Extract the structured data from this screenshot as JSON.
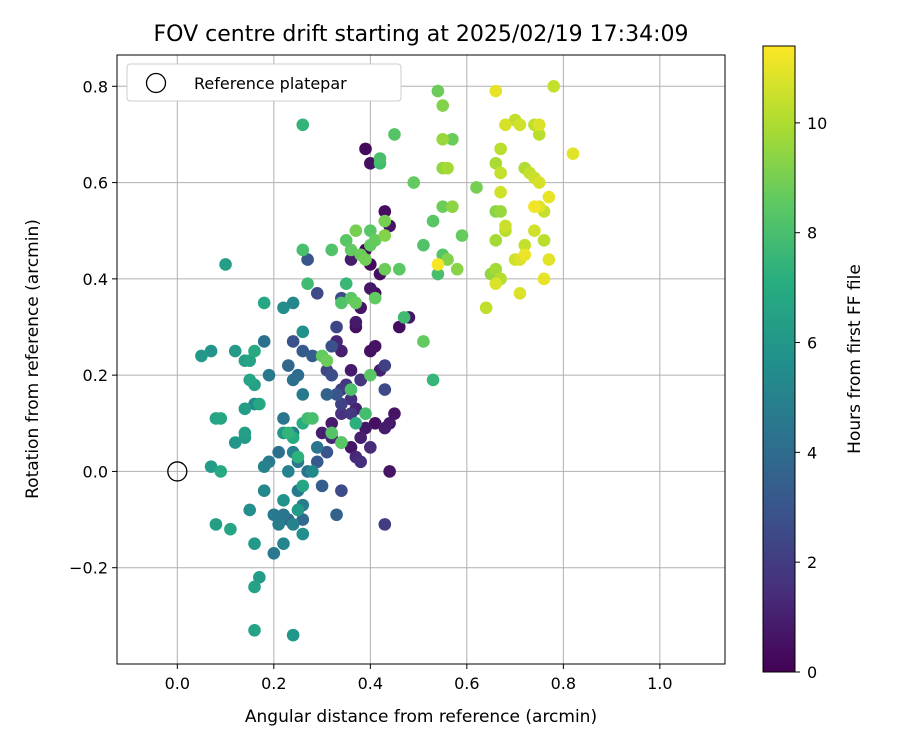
{
  "chart_data": {
    "type": "scatter",
    "title": "FOV centre drift starting at 2025/02/19 17:34:09",
    "xlabel": "Angular distance from reference (arcmin)",
    "ylabel": "Rotation from reference (arcmin)",
    "xlim": [
      -0.125,
      1.135
    ],
    "ylim": [
      -0.4,
      0.865
    ],
    "xticks": [
      "0.0",
      "0.2",
      "0.4",
      "0.6",
      "0.8",
      "1.0"
    ],
    "yticks": [
      "−0.2",
      "0.0",
      "0.2",
      "0.4",
      "0.6",
      "0.8"
    ],
    "grid": true,
    "legend": {
      "placement": "top-left",
      "entries": [
        "Reference platepar"
      ]
    },
    "reference_point": {
      "x": 0.0,
      "y": 0.0
    },
    "colormap": "viridis",
    "colorbar": {
      "label": "Hours from first FF file",
      "range": [
        0,
        11.4
      ],
      "ticks": [
        "0",
        "2",
        "4",
        "6",
        "8",
        "10"
      ]
    },
    "points": [
      {
        "x": 0.39,
        "y": 0.67,
        "h": 0.3
      },
      {
        "x": 0.4,
        "y": 0.64,
        "h": 0.5
      },
      {
        "x": 0.43,
        "y": 0.54,
        "h": 0.4
      },
      {
        "x": 0.44,
        "y": 0.51,
        "h": 0.6
      },
      {
        "x": 0.39,
        "y": 0.46,
        "h": 0.2
      },
      {
        "x": 0.36,
        "y": 0.44,
        "h": 0.9
      },
      {
        "x": 0.4,
        "y": 0.43,
        "h": 0.3
      },
      {
        "x": 0.42,
        "y": 0.41,
        "h": 0.5
      },
      {
        "x": 0.4,
        "y": 0.38,
        "h": 0.7
      },
      {
        "x": 0.41,
        "y": 0.37,
        "h": 0.4
      },
      {
        "x": 0.38,
        "y": 0.34,
        "h": 0.6
      },
      {
        "x": 0.37,
        "y": 0.31,
        "h": 0.8
      },
      {
        "x": 0.37,
        "y": 0.3,
        "h": 0.5
      },
      {
        "x": 0.46,
        "y": 0.3,
        "h": 0.4
      },
      {
        "x": 0.48,
        "y": 0.32,
        "h": 0.7
      },
      {
        "x": 0.4,
        "y": 0.25,
        "h": 0.5
      },
      {
        "x": 0.41,
        "y": 0.26,
        "h": 0.6
      },
      {
        "x": 0.42,
        "y": 0.21,
        "h": 1.0
      },
      {
        "x": 0.36,
        "y": 0.21,
        "h": 0.8
      },
      {
        "x": 0.38,
        "y": 0.19,
        "h": 0.3
      },
      {
        "x": 0.33,
        "y": 0.27,
        "h": 1.2
      },
      {
        "x": 0.34,
        "y": 0.25,
        "h": 1.0
      },
      {
        "x": 0.37,
        "y": 0.13,
        "h": 1.1
      },
      {
        "x": 0.32,
        "y": 0.1,
        "h": 0.9
      },
      {
        "x": 0.39,
        "y": 0.09,
        "h": 0.7
      },
      {
        "x": 0.41,
        "y": 0.1,
        "h": 0.5
      },
      {
        "x": 0.43,
        "y": 0.09,
        "h": 0.9
      },
      {
        "x": 0.45,
        "y": 0.12,
        "h": 0.6
      },
      {
        "x": 0.44,
        "y": 0.1,
        "h": 0.8
      },
      {
        "x": 0.3,
        "y": 0.08,
        "h": 1.0
      },
      {
        "x": 0.32,
        "y": 0.07,
        "h": 1.2
      },
      {
        "x": 0.34,
        "y": 0.06,
        "h": 0.8
      },
      {
        "x": 0.36,
        "y": 0.05,
        "h": 0.6
      },
      {
        "x": 0.38,
        "y": 0.07,
        "h": 1.0
      },
      {
        "x": 0.4,
        "y": 0.05,
        "h": 1.4
      },
      {
        "x": 0.44,
        "y": 0.0,
        "h": 0.6
      },
      {
        "x": 0.37,
        "y": 0.03,
        "h": 1.3
      },
      {
        "x": 0.38,
        "y": 0.02,
        "h": 1.5
      },
      {
        "x": 0.34,
        "y": 0.12,
        "h": 1.6
      },
      {
        "x": 0.36,
        "y": 0.15,
        "h": 1.5
      },
      {
        "x": 0.34,
        "y": 0.17,
        "h": 2.0
      },
      {
        "x": 0.35,
        "y": 0.18,
        "h": 1.8
      },
      {
        "x": 0.36,
        "y": 0.12,
        "h": 1.9
      },
      {
        "x": 0.34,
        "y": 0.14,
        "h": 2.2
      },
      {
        "x": 0.38,
        "y": 0.19,
        "h": 1.7
      },
      {
        "x": 0.43,
        "y": 0.22,
        "h": 2.2
      },
      {
        "x": 0.43,
        "y": 0.17,
        "h": 2.5
      },
      {
        "x": 0.43,
        "y": -0.11,
        "h": 2.0
      },
      {
        "x": 0.34,
        "y": -0.04,
        "h": 2.6
      },
      {
        "x": 0.3,
        "y": -0.03,
        "h": 3.4
      },
      {
        "x": 0.33,
        "y": -0.09,
        "h": 3.5
      },
      {
        "x": 0.31,
        "y": 0.04,
        "h": 3.0
      },
      {
        "x": 0.29,
        "y": 0.02,
        "h": 3.2
      },
      {
        "x": 0.33,
        "y": 0.16,
        "h": 3.0
      },
      {
        "x": 0.31,
        "y": 0.16,
        "h": 3.6
      },
      {
        "x": 0.32,
        "y": 0.2,
        "h": 2.7
      },
      {
        "x": 0.31,
        "y": 0.21,
        "h": 2.4
      },
      {
        "x": 0.32,
        "y": 0.26,
        "h": 2.8
      },
      {
        "x": 0.34,
        "y": 0.36,
        "h": 2.6
      },
      {
        "x": 0.33,
        "y": 0.3,
        "h": 2.4
      },
      {
        "x": 0.29,
        "y": 0.37,
        "h": 2.5
      },
      {
        "x": 0.27,
        "y": 0.44,
        "h": 3.0
      },
      {
        "x": 0.24,
        "y": 0.27,
        "h": 2.8
      },
      {
        "x": 0.26,
        "y": 0.25,
        "h": 3.2
      },
      {
        "x": 0.28,
        "y": 0.24,
        "h": 3.4
      },
      {
        "x": 0.23,
        "y": 0.22,
        "h": 3.8
      },
      {
        "x": 0.25,
        "y": 0.2,
        "h": 4.0
      },
      {
        "x": 0.24,
        "y": 0.19,
        "h": 4.2
      },
      {
        "x": 0.26,
        "y": 0.16,
        "h": 4.6
      },
      {
        "x": 0.22,
        "y": 0.11,
        "h": 4.4
      },
      {
        "x": 0.24,
        "y": 0.08,
        "h": 4.8
      },
      {
        "x": 0.21,
        "y": 0.04,
        "h": 4.2
      },
      {
        "x": 0.24,
        "y": 0.04,
        "h": 4.9
      },
      {
        "x": 0.25,
        "y": 0.02,
        "h": 4.5
      },
      {
        "x": 0.27,
        "y": 0.0,
        "h": 4.3
      },
      {
        "x": 0.23,
        "y": 0.0,
        "h": 5.0
      },
      {
        "x": 0.25,
        "y": -0.04,
        "h": 4.6
      },
      {
        "x": 0.26,
        "y": -0.07,
        "h": 4.8
      },
      {
        "x": 0.26,
        "y": -0.1,
        "h": 3.9
      },
      {
        "x": 0.23,
        "y": -0.1,
        "h": 4.1
      },
      {
        "x": 0.22,
        "y": -0.09,
        "h": 4.4
      },
      {
        "x": 0.24,
        "y": -0.11,
        "h": 5.0
      },
      {
        "x": 0.2,
        "y": -0.09,
        "h": 4.6
      },
      {
        "x": 0.21,
        "y": -0.11,
        "h": 4.8
      },
      {
        "x": 0.22,
        "y": -0.15,
        "h": 5.2
      },
      {
        "x": 0.2,
        "y": -0.17,
        "h": 4.5
      },
      {
        "x": 0.18,
        "y": 0.01,
        "h": 5.0
      },
      {
        "x": 0.19,
        "y": 0.02,
        "h": 4.7
      },
      {
        "x": 0.18,
        "y": -0.04,
        "h": 5.3
      },
      {
        "x": 0.16,
        "y": 0.14,
        "h": 5.4
      },
      {
        "x": 0.19,
        "y": 0.2,
        "h": 4.6
      },
      {
        "x": 0.18,
        "y": 0.27,
        "h": 4.2
      },
      {
        "x": 0.22,
        "y": 0.34,
        "h": 5.5
      },
      {
        "x": 0.24,
        "y": 0.35,
        "h": 5.2
      },
      {
        "x": 0.26,
        "y": 0.29,
        "h": 5.7
      },
      {
        "x": 0.29,
        "y": 0.05,
        "h": 4.4
      },
      {
        "x": 0.28,
        "y": -0.0,
        "h": 5.4
      },
      {
        "x": 0.26,
        "y": -0.13,
        "h": 5.6
      },
      {
        "x": 0.25,
        "y": -0.08,
        "h": 6.2
      },
      {
        "x": 0.22,
        "y": -0.06,
        "h": 5.8
      },
      {
        "x": 0.22,
        "y": 0.08,
        "h": 6.0
      },
      {
        "x": 0.16,
        "y": -0.15,
        "h": 6.1
      },
      {
        "x": 0.12,
        "y": 0.06,
        "h": 6.0
      },
      {
        "x": 0.14,
        "y": 0.07,
        "h": 6.2
      },
      {
        "x": 0.14,
        "y": 0.08,
        "h": 6.4
      },
      {
        "x": 0.14,
        "y": 0.13,
        "h": 6.3
      },
      {
        "x": 0.16,
        "y": 0.18,
        "h": 6.5
      },
      {
        "x": 0.15,
        "y": 0.19,
        "h": 6.7
      },
      {
        "x": 0.17,
        "y": 0.14,
        "h": 6.8
      },
      {
        "x": 0.14,
        "y": 0.23,
        "h": 6.4
      },
      {
        "x": 0.16,
        "y": 0.25,
        "h": 6.9
      },
      {
        "x": 0.12,
        "y": 0.25,
        "h": 6.2
      },
      {
        "x": 0.1,
        "y": 0.43,
        "h": 6.4
      },
      {
        "x": 0.18,
        "y": 0.35,
        "h": 6.8
      },
      {
        "x": 0.15,
        "y": 0.23,
        "h": 6.6
      },
      {
        "x": 0.07,
        "y": 0.25,
        "h": 5.9
      },
      {
        "x": 0.05,
        "y": 0.24,
        "h": 6.1
      },
      {
        "x": 0.08,
        "y": 0.11,
        "h": 6.6
      },
      {
        "x": 0.09,
        "y": 0.11,
        "h": 6.8
      },
      {
        "x": 0.07,
        "y": 0.01,
        "h": 6.2
      },
      {
        "x": 0.09,
        "y": 0.0,
        "h": 6.9
      },
      {
        "x": 0.08,
        "y": -0.11,
        "h": 6.4
      },
      {
        "x": 0.11,
        "y": -0.12,
        "h": 6.7
      },
      {
        "x": 0.15,
        "y": -0.08,
        "h": 5.6
      },
      {
        "x": 0.16,
        "y": -0.24,
        "h": 6.5
      },
      {
        "x": 0.17,
        "y": -0.22,
        "h": 6.2
      },
      {
        "x": 0.16,
        "y": -0.33,
        "h": 6.6
      },
      {
        "x": 0.24,
        "y": -0.34,
        "h": 6.0
      },
      {
        "x": 0.26,
        "y": -0.03,
        "h": 6.7
      },
      {
        "x": 0.24,
        "y": 0.07,
        "h": 7.0
      },
      {
        "x": 0.23,
        "y": 0.08,
        "h": 7.4
      },
      {
        "x": 0.26,
        "y": 0.1,
        "h": 7.1
      },
      {
        "x": 0.25,
        "y": 0.03,
        "h": 7.3
      },
      {
        "x": 0.27,
        "y": 0.11,
        "h": 7.8
      },
      {
        "x": 0.28,
        "y": 0.11,
        "h": 8.0
      },
      {
        "x": 0.32,
        "y": 0.08,
        "h": 8.3
      },
      {
        "x": 0.34,
        "y": 0.06,
        "h": 8.4
      },
      {
        "x": 0.37,
        "y": 0.1,
        "h": 7.2
      },
      {
        "x": 0.39,
        "y": 0.12,
        "h": 7.9
      },
      {
        "x": 0.36,
        "y": 0.17,
        "h": 8.1
      },
      {
        "x": 0.4,
        "y": 0.2,
        "h": 8.4
      },
      {
        "x": 0.3,
        "y": 0.24,
        "h": 8.6
      },
      {
        "x": 0.31,
        "y": 0.23,
        "h": 8.8
      },
      {
        "x": 0.34,
        "y": 0.35,
        "h": 8.2
      },
      {
        "x": 0.36,
        "y": 0.36,
        "h": 8.5
      },
      {
        "x": 0.37,
        "y": 0.35,
        "h": 8.7
      },
      {
        "x": 0.41,
        "y": 0.36,
        "h": 8.6
      },
      {
        "x": 0.35,
        "y": 0.39,
        "h": 7.6
      },
      {
        "x": 0.27,
        "y": 0.39,
        "h": 7.8
      },
      {
        "x": 0.26,
        "y": 0.46,
        "h": 8.0
      },
      {
        "x": 0.26,
        "y": 0.72,
        "h": 7.4
      },
      {
        "x": 0.32,
        "y": 0.46,
        "h": 8.2
      },
      {
        "x": 0.35,
        "y": 0.48,
        "h": 8.4
      },
      {
        "x": 0.36,
        "y": 0.46,
        "h": 8.6
      },
      {
        "x": 0.37,
        "y": 0.5,
        "h": 9.0
      },
      {
        "x": 0.38,
        "y": 0.45,
        "h": 8.8
      },
      {
        "x": 0.39,
        "y": 0.44,
        "h": 8.9
      },
      {
        "x": 0.4,
        "y": 0.5,
        "h": 8.4
      },
      {
        "x": 0.4,
        "y": 0.47,
        "h": 8.6
      },
      {
        "x": 0.41,
        "y": 0.48,
        "h": 8.7
      },
      {
        "x": 0.43,
        "y": 0.52,
        "h": 9.0
      },
      {
        "x": 0.43,
        "y": 0.49,
        "h": 9.2
      },
      {
        "x": 0.43,
        "y": 0.42,
        "h": 8.8
      },
      {
        "x": 0.46,
        "y": 0.42,
        "h": 8.5
      },
      {
        "x": 0.42,
        "y": 0.64,
        "h": 7.8
      },
      {
        "x": 0.42,
        "y": 0.65,
        "h": 8.0
      },
      {
        "x": 0.45,
        "y": 0.7,
        "h": 8.3
      },
      {
        "x": 0.49,
        "y": 0.6,
        "h": 8.6
      },
      {
        "x": 0.51,
        "y": 0.47,
        "h": 8.2
      },
      {
        "x": 0.47,
        "y": 0.32,
        "h": 7.8
      },
      {
        "x": 0.51,
        "y": 0.27,
        "h": 8.6
      },
      {
        "x": 0.53,
        "y": 0.19,
        "h": 7.5
      },
      {
        "x": 0.53,
        "y": 0.52,
        "h": 8.4
      },
      {
        "x": 0.55,
        "y": 0.55,
        "h": 8.8
      },
      {
        "x": 0.54,
        "y": 0.41,
        "h": 8.0
      },
      {
        "x": 0.55,
        "y": 0.45,
        "h": 8.3
      },
      {
        "x": 0.56,
        "y": 0.44,
        "h": 9.2
      },
      {
        "x": 0.54,
        "y": 0.79,
        "h": 8.8
      },
      {
        "x": 0.55,
        "y": 0.76,
        "h": 9.2
      },
      {
        "x": 0.55,
        "y": 0.69,
        "h": 9.6
      },
      {
        "x": 0.57,
        "y": 0.69,
        "h": 8.8
      },
      {
        "x": 0.55,
        "y": 0.63,
        "h": 9.5
      },
      {
        "x": 0.56,
        "y": 0.63,
        "h": 9.8
      },
      {
        "x": 0.57,
        "y": 0.55,
        "h": 9.4
      },
      {
        "x": 0.59,
        "y": 0.49,
        "h": 8.7
      },
      {
        "x": 0.58,
        "y": 0.42,
        "h": 9.3
      },
      {
        "x": 0.62,
        "y": 0.59,
        "h": 9.0
      },
      {
        "x": 0.64,
        "y": 0.34,
        "h": 10.3
      },
      {
        "x": 0.65,
        "y": 0.41,
        "h": 9.5
      },
      {
        "x": 0.66,
        "y": 0.48,
        "h": 9.8
      },
      {
        "x": 0.66,
        "y": 0.54,
        "h": 9.3
      },
      {
        "x": 0.67,
        "y": 0.54,
        "h": 9.6
      },
      {
        "x": 0.66,
        "y": 0.64,
        "h": 9.9
      },
      {
        "x": 0.67,
        "y": 0.67,
        "h": 10.2
      },
      {
        "x": 0.67,
        "y": 0.62,
        "h": 10.4
      },
      {
        "x": 0.67,
        "y": 0.58,
        "h": 10.6
      },
      {
        "x": 0.68,
        "y": 0.5,
        "h": 10.2
      },
      {
        "x": 0.68,
        "y": 0.51,
        "h": 10.5
      },
      {
        "x": 0.66,
        "y": 0.42,
        "h": 9.8
      },
      {
        "x": 0.67,
        "y": 0.4,
        "h": 10.1
      },
      {
        "x": 0.66,
        "y": 0.39,
        "h": 10.8
      },
      {
        "x": 0.66,
        "y": 0.79,
        "h": 11.0
      },
      {
        "x": 0.68,
        "y": 0.72,
        "h": 10.7
      },
      {
        "x": 0.7,
        "y": 0.73,
        "h": 10.3
      },
      {
        "x": 0.71,
        "y": 0.72,
        "h": 10.6
      },
      {
        "x": 0.72,
        "y": 0.63,
        "h": 10.0
      },
      {
        "x": 0.73,
        "y": 0.62,
        "h": 10.4
      },
      {
        "x": 0.74,
        "y": 0.72,
        "h": 10.3
      },
      {
        "x": 0.75,
        "y": 0.72,
        "h": 10.8
      },
      {
        "x": 0.75,
        "y": 0.7,
        "h": 10.2
      },
      {
        "x": 0.74,
        "y": 0.61,
        "h": 10.5
      },
      {
        "x": 0.75,
        "y": 0.6,
        "h": 10.7
      },
      {
        "x": 0.75,
        "y": 0.55,
        "h": 10.9
      },
      {
        "x": 0.76,
        "y": 0.54,
        "h": 10.4
      },
      {
        "x": 0.74,
        "y": 0.55,
        "h": 11.2
      },
      {
        "x": 0.77,
        "y": 0.57,
        "h": 11.0
      },
      {
        "x": 0.74,
        "y": 0.5,
        "h": 10.6
      },
      {
        "x": 0.76,
        "y": 0.48,
        "h": 10.2
      },
      {
        "x": 0.72,
        "y": 0.47,
        "h": 10.4
      },
      {
        "x": 0.71,
        "y": 0.44,
        "h": 10.8
      },
      {
        "x": 0.7,
        "y": 0.44,
        "h": 10.6
      },
      {
        "x": 0.72,
        "y": 0.45,
        "h": 11.1
      },
      {
        "x": 0.77,
        "y": 0.44,
        "h": 10.9
      },
      {
        "x": 0.76,
        "y": 0.4,
        "h": 11.0
      },
      {
        "x": 0.71,
        "y": 0.37,
        "h": 10.8
      },
      {
        "x": 0.78,
        "y": 0.8,
        "h": 10.4
      },
      {
        "x": 0.82,
        "y": 0.66,
        "h": 10.9
      },
      {
        "x": 0.54,
        "y": 0.43,
        "h": 11.3
      }
    ]
  }
}
